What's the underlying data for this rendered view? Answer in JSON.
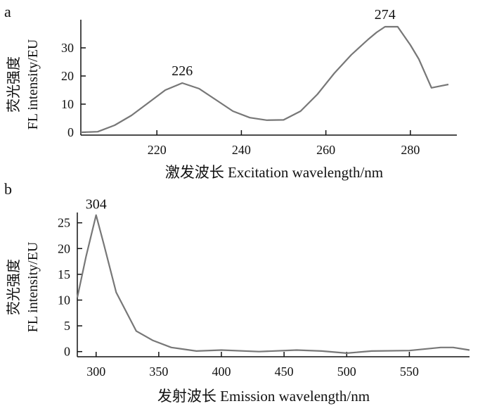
{
  "chart_data": [
    {
      "panel_label": "a",
      "type": "line",
      "xlabel": "激发波长 Excitation wavelength/nm",
      "ylabel_line1": "荧光强度",
      "ylabel_line2": "FL intensity/EU",
      "xlim": [
        202,
        291
      ],
      "ylim": [
        -1,
        40
      ],
      "xticks": [
        220,
        240,
        260,
        280
      ],
      "yticks": [
        0,
        10,
        20,
        30
      ],
      "grid": false,
      "legend": "none",
      "line_color": "#777777",
      "annotations": [
        {
          "text": "226",
          "x": 226,
          "y": 18
        },
        {
          "text": "274",
          "x": 274,
          "y": 38
        }
      ],
      "series": [
        {
          "x": [
            202,
            206,
            210,
            214,
            218,
            222,
            226,
            230,
            234,
            238,
            242,
            246,
            250,
            254,
            258,
            262,
            266,
            270,
            272,
            274,
            277,
            280,
            282,
            285,
            289
          ],
          "y": [
            0,
            0.2,
            2.5,
            6,
            10.5,
            15,
            17.5,
            15.5,
            11.5,
            7.5,
            5.2,
            4.3,
            4.4,
            7.5,
            13.5,
            21,
            27.5,
            33,
            35.5,
            37.5,
            37.5,
            31,
            26,
            15.8,
            17
          ]
        }
      ]
    },
    {
      "panel_label": "b",
      "type": "line",
      "xlabel": "发射波长 Emission wavelength/nm",
      "ylabel_line1": "荧光强度",
      "ylabel_line2": "FL intensity/EU",
      "xlim": [
        285,
        598
      ],
      "ylim": [
        -1,
        27
      ],
      "xticks": [
        300,
        350,
        400,
        450,
        500,
        550
      ],
      "yticks": [
        0,
        5,
        10,
        15,
        20,
        25
      ],
      "grid": false,
      "legend": "none",
      "line_color": "#777777",
      "annotations": [
        {
          "text": "304",
          "x": 300,
          "y": 26.5
        }
      ],
      "series": [
        {
          "x": [
            285,
            292,
            300,
            306,
            316,
            332,
            345,
            360,
            380,
            400,
            430,
            460,
            480,
            500,
            520,
            550,
            575,
            585,
            598
          ],
          "y": [
            10.5,
            18.5,
            26.5,
            21,
            11.5,
            4,
            2.2,
            0.8,
            0.1,
            0.3,
            0,
            0.3,
            0.1,
            -0.3,
            0.1,
            0.2,
            0.8,
            0.8,
            0.3
          ]
        }
      ]
    }
  ]
}
